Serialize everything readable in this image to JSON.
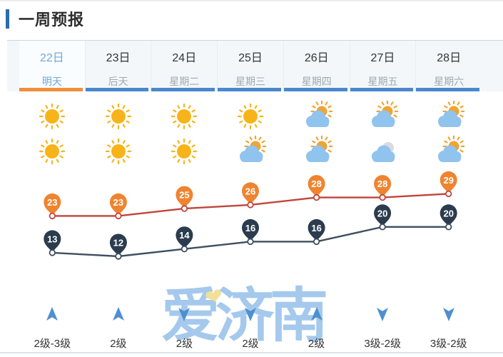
{
  "header": {
    "title": "一周预报"
  },
  "tabs": [
    {
      "date": "22日",
      "label": "明天",
      "selected": true
    },
    {
      "date": "23日",
      "label": "后天",
      "selected": false
    },
    {
      "date": "24日",
      "label": "星期二",
      "selected": false
    },
    {
      "date": "25日",
      "label": "星期三",
      "selected": false
    },
    {
      "date": "26日",
      "label": "星期四",
      "selected": false
    },
    {
      "date": "27日",
      "label": "星期五",
      "selected": false
    },
    {
      "date": "28日",
      "label": "星期六",
      "selected": false
    }
  ],
  "weather_icons": {
    "day": [
      "sunny",
      "sunny",
      "sunny",
      "sunny",
      "partly-cloudy",
      "partly-cloudy",
      "partly-cloudy"
    ],
    "night": [
      "sunny",
      "sunny",
      "sunny",
      "partly-cloudy",
      "partly-cloudy",
      "cloudy",
      "partly-cloudy"
    ]
  },
  "chart_data": {
    "type": "line",
    "categories": [
      "22日",
      "23日",
      "24日",
      "25日",
      "26日",
      "27日",
      "28日"
    ],
    "series": [
      {
        "name": "high-temperature",
        "values": [
          23,
          23,
          25,
          26,
          28,
          28,
          29
        ],
        "line_color": "#c0453b",
        "pin_color": "#ef8430"
      },
      {
        "name": "low-temperature",
        "values": [
          13,
          12,
          14,
          16,
          16,
          20,
          20
        ],
        "line_color": "#3e4f60",
        "pin_color": "#2b3c4e"
      }
    ],
    "unit": "°C",
    "grid": false,
    "legend_position": "none"
  },
  "wind": {
    "directions": [
      "up",
      "up",
      "down",
      "down",
      "up",
      "down",
      "down"
    ],
    "labels": [
      "2级-3级",
      "2级",
      "2级",
      "2级",
      "2级",
      "3级-2级",
      "3级-2级"
    ]
  },
  "watermark": {
    "text": "爱济南",
    "heart_icon": "heart"
  },
  "colors": {
    "accent_bar": "#2a6cae",
    "selected_tab_text": "#6fa7d9",
    "selected_underline": "#ee8f3d",
    "underline": "#4a88cd",
    "sun": "#f7b41a",
    "partly_sun": "#f0a432",
    "cloud": "#90c3ee",
    "gray_cloud": "#d8dcdf",
    "wind_arrow": "#4e8fd0",
    "watermark_blue": "#8fbce8",
    "watermark_heart": "#f2e097"
  }
}
